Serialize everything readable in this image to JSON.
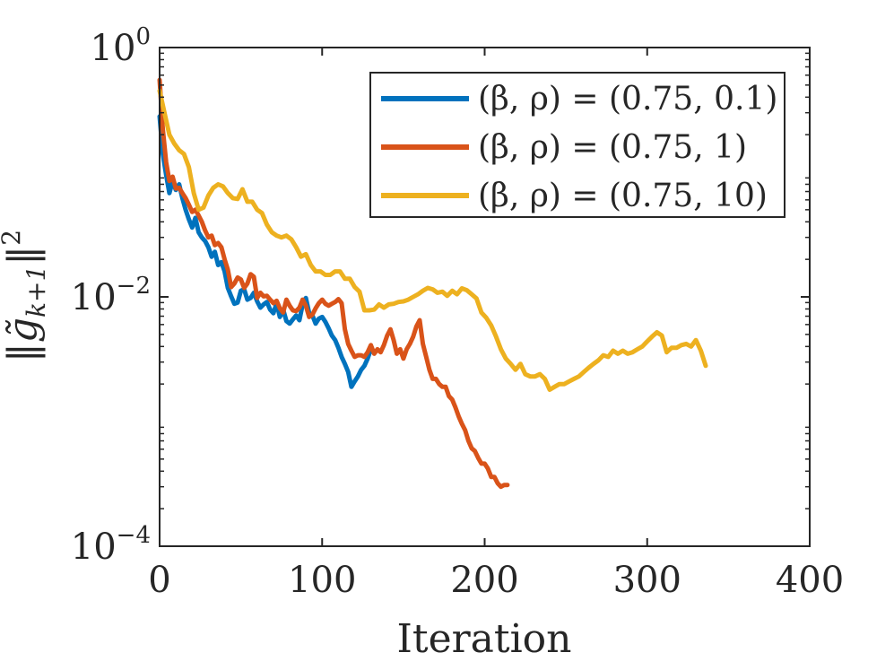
{
  "chart_data": {
    "type": "line",
    "xlabel": "Iteration",
    "ylabel": "||g̃k+1||²",
    "ylabel_parts": {
      "norm_open": "‖",
      "g": "g̃",
      "subscript": "k+1",
      "norm_close": "‖",
      "power": "2"
    },
    "xlim": [
      0,
      400
    ],
    "ylim": [
      0.0001,
      1
    ],
    "yscale": "log",
    "x_ticks": [
      0,
      100,
      200,
      300,
      400
    ],
    "x_tick_labels": [
      "0",
      "100",
      "200",
      "300",
      "400"
    ],
    "y_ticks": [
      {
        "value": 1,
        "base": "10",
        "exp": "0"
      },
      {
        "value": 0.01,
        "base": "10",
        "exp": "−2"
      },
      {
        "value": 0.0001,
        "base": "10",
        "exp": "−4"
      }
    ],
    "legend_position": "top-right",
    "series": [
      {
        "name": "(β, ρ) = (0.75, 0.1)",
        "color": "#0072BD",
        "x": [
          0,
          2,
          4,
          6,
          8,
          10,
          12,
          14,
          16,
          18,
          20,
          22,
          24,
          26,
          28,
          30,
          32,
          34,
          36,
          38,
          40,
          42,
          44,
          46,
          48,
          50,
          52,
          54,
          56,
          58,
          60,
          62,
          64,
          66,
          68,
          70,
          72,
          74,
          76,
          78,
          80,
          82,
          84,
          86,
          88,
          90,
          92,
          94,
          96,
          98,
          100,
          102,
          104,
          106,
          108,
          110,
          112,
          114,
          116,
          118,
          120,
          122,
          124,
          126,
          128,
          130
        ],
        "y": [
          0.28,
          0.14,
          0.095,
          0.068,
          0.085,
          0.072,
          0.08,
          0.062,
          0.05,
          0.042,
          0.036,
          0.043,
          0.033,
          0.03,
          0.028,
          0.025,
          0.021,
          0.023,
          0.018,
          0.019,
          0.016,
          0.0118,
          0.0101,
          0.0088,
          0.009,
          0.0112,
          0.0115,
          0.0095,
          0.0098,
          0.0108,
          0.0092,
          0.0082,
          0.0087,
          0.0091,
          0.0079,
          0.0074,
          0.0089,
          0.0069,
          0.0079,
          0.0064,
          0.0061,
          0.0066,
          0.0071,
          0.0065,
          0.0087,
          0.0098,
          0.0074,
          0.0071,
          0.0061,
          0.0067,
          0.0069,
          0.0063,
          0.0056,
          0.0049,
          0.0045,
          0.0039,
          0.0033,
          0.0029,
          0.0025,
          0.0019,
          0.0021,
          0.0023,
          0.0026,
          0.0028,
          0.0032,
          0.0038
        ]
      },
      {
        "name": "(β, ρ) = (0.75, 1)",
        "color": "#D95319",
        "x": [
          0,
          2,
          4,
          6,
          8,
          10,
          12,
          14,
          16,
          18,
          20,
          22,
          24,
          26,
          28,
          30,
          32,
          34,
          36,
          38,
          40,
          42,
          44,
          46,
          48,
          50,
          52,
          54,
          56,
          58,
          60,
          62,
          64,
          66,
          68,
          70,
          72,
          74,
          76,
          78,
          80,
          82,
          84,
          86,
          88,
          90,
          92,
          94,
          96,
          98,
          100,
          102,
          104,
          106,
          108,
          110,
          112,
          114,
          116,
          118,
          120,
          122,
          124,
          126,
          128,
          130,
          132,
          134,
          136,
          138,
          140,
          142,
          144,
          146,
          148,
          150,
          152,
          154,
          156,
          158,
          160,
          162,
          164,
          166,
          168,
          170,
          172,
          174,
          176,
          178,
          180,
          182,
          184,
          186,
          188,
          190,
          192,
          194,
          196,
          198,
          200,
          202,
          204,
          206,
          208,
          210,
          212,
          214
        ],
        "y": [
          0.55,
          0.22,
          0.12,
          0.085,
          0.092,
          0.074,
          0.075,
          0.068,
          0.062,
          0.055,
          0.048,
          0.05,
          0.045,
          0.04,
          0.034,
          0.03,
          0.031,
          0.026,
          0.027,
          0.025,
          0.02,
          0.0165,
          0.012,
          0.0128,
          0.0143,
          0.0138,
          0.0118,
          0.0128,
          0.0152,
          0.0145,
          0.0098,
          0.0108,
          0.0101,
          0.0102,
          0.0095,
          0.0089,
          0.0093,
          0.0081,
          0.0075,
          0.0095,
          0.0085,
          0.0078,
          0.0077,
          0.0082,
          0.0095,
          0.0085,
          0.0069,
          0.0072,
          0.0081,
          0.0089,
          0.0095,
          0.0088,
          0.0085,
          0.0088,
          0.0091,
          0.0096,
          0.0089,
          0.0055,
          0.0042,
          0.0037,
          0.0033,
          0.0034,
          0.0034,
          0.0033,
          0.0036,
          0.0041,
          0.0035,
          0.0038,
          0.0036,
          0.0041,
          0.0049,
          0.0055,
          0.0045,
          0.0035,
          0.0038,
          0.0032,
          0.0038,
          0.0042,
          0.0048,
          0.0058,
          0.0065,
          0.0042,
          0.0033,
          0.0026,
          0.0022,
          0.0022,
          0.002,
          0.0019,
          0.0019,
          0.0016,
          0.0015,
          0.0013,
          0.0011,
          0.00096,
          0.00085,
          0.0007,
          0.00061,
          0.00058,
          0.00051,
          0.00046,
          0.00046,
          0.00042,
          0.00036,
          0.00036,
          0.00032,
          0.0003,
          0.00031,
          0.00031
        ]
      },
      {
        "name": "(β, ρ) = (0.75, 10)",
        "color": "#EDB120",
        "x": [
          0,
          3,
          6,
          9,
          12,
          15,
          18,
          21,
          24,
          27,
          30,
          33,
          36,
          39,
          42,
          45,
          48,
          51,
          54,
          57,
          60,
          63,
          66,
          69,
          72,
          75,
          78,
          81,
          84,
          87,
          90,
          93,
          96,
          99,
          102,
          105,
          108,
          111,
          114,
          117,
          120,
          123,
          126,
          129,
          132,
          135,
          138,
          141,
          144,
          147,
          150,
          153,
          156,
          159,
          162,
          165,
          168,
          171,
          174,
          177,
          180,
          183,
          186,
          189,
          192,
          195,
          198,
          201,
          204,
          207,
          210,
          213,
          216,
          219,
          222,
          225,
          228,
          231,
          234,
          237,
          240,
          243,
          246,
          249,
          252,
          255,
          258,
          261,
          264,
          267,
          270,
          273,
          276,
          279,
          282,
          285,
          288,
          291,
          294,
          297,
          300,
          303,
          306,
          309,
          312,
          315,
          318,
          321,
          324,
          327,
          330,
          333,
          336
        ],
        "y": [
          0.45,
          0.3,
          0.2,
          0.17,
          0.15,
          0.14,
          0.11,
          0.068,
          0.05,
          0.052,
          0.065,
          0.075,
          0.08,
          0.077,
          0.068,
          0.062,
          0.061,
          0.073,
          0.058,
          0.058,
          0.05,
          0.047,
          0.038,
          0.033,
          0.031,
          0.03,
          0.031,
          0.029,
          0.025,
          0.021,
          0.022,
          0.018,
          0.016,
          0.016,
          0.015,
          0.015,
          0.016,
          0.016,
          0.014,
          0.014,
          0.012,
          0.011,
          0.0078,
          0.0078,
          0.0079,
          0.0087,
          0.0082,
          0.0087,
          0.0088,
          0.0091,
          0.0092,
          0.0095,
          0.01,
          0.0105,
          0.0112,
          0.0118,
          0.0115,
          0.0108,
          0.011,
          0.0102,
          0.0112,
          0.0105,
          0.0117,
          0.0113,
          0.0105,
          0.0097,
          0.0075,
          0.0068,
          0.0059,
          0.0048,
          0.0038,
          0.0032,
          0.0029,
          0.0026,
          0.0029,
          0.0024,
          0.0023,
          0.0023,
          0.0024,
          0.0022,
          0.0018,
          0.0019,
          0.002,
          0.002,
          0.0021,
          0.0022,
          0.0023,
          0.0025,
          0.0027,
          0.0029,
          0.0031,
          0.0034,
          0.0033,
          0.0037,
          0.0035,
          0.0037,
          0.0035,
          0.0036,
          0.0038,
          0.004,
          0.0044,
          0.0048,
          0.0052,
          0.0049,
          0.0036,
          0.0039,
          0.0039,
          0.0041,
          0.0042,
          0.004,
          0.0045,
          0.0037,
          0.0028
        ]
      }
    ]
  }
}
